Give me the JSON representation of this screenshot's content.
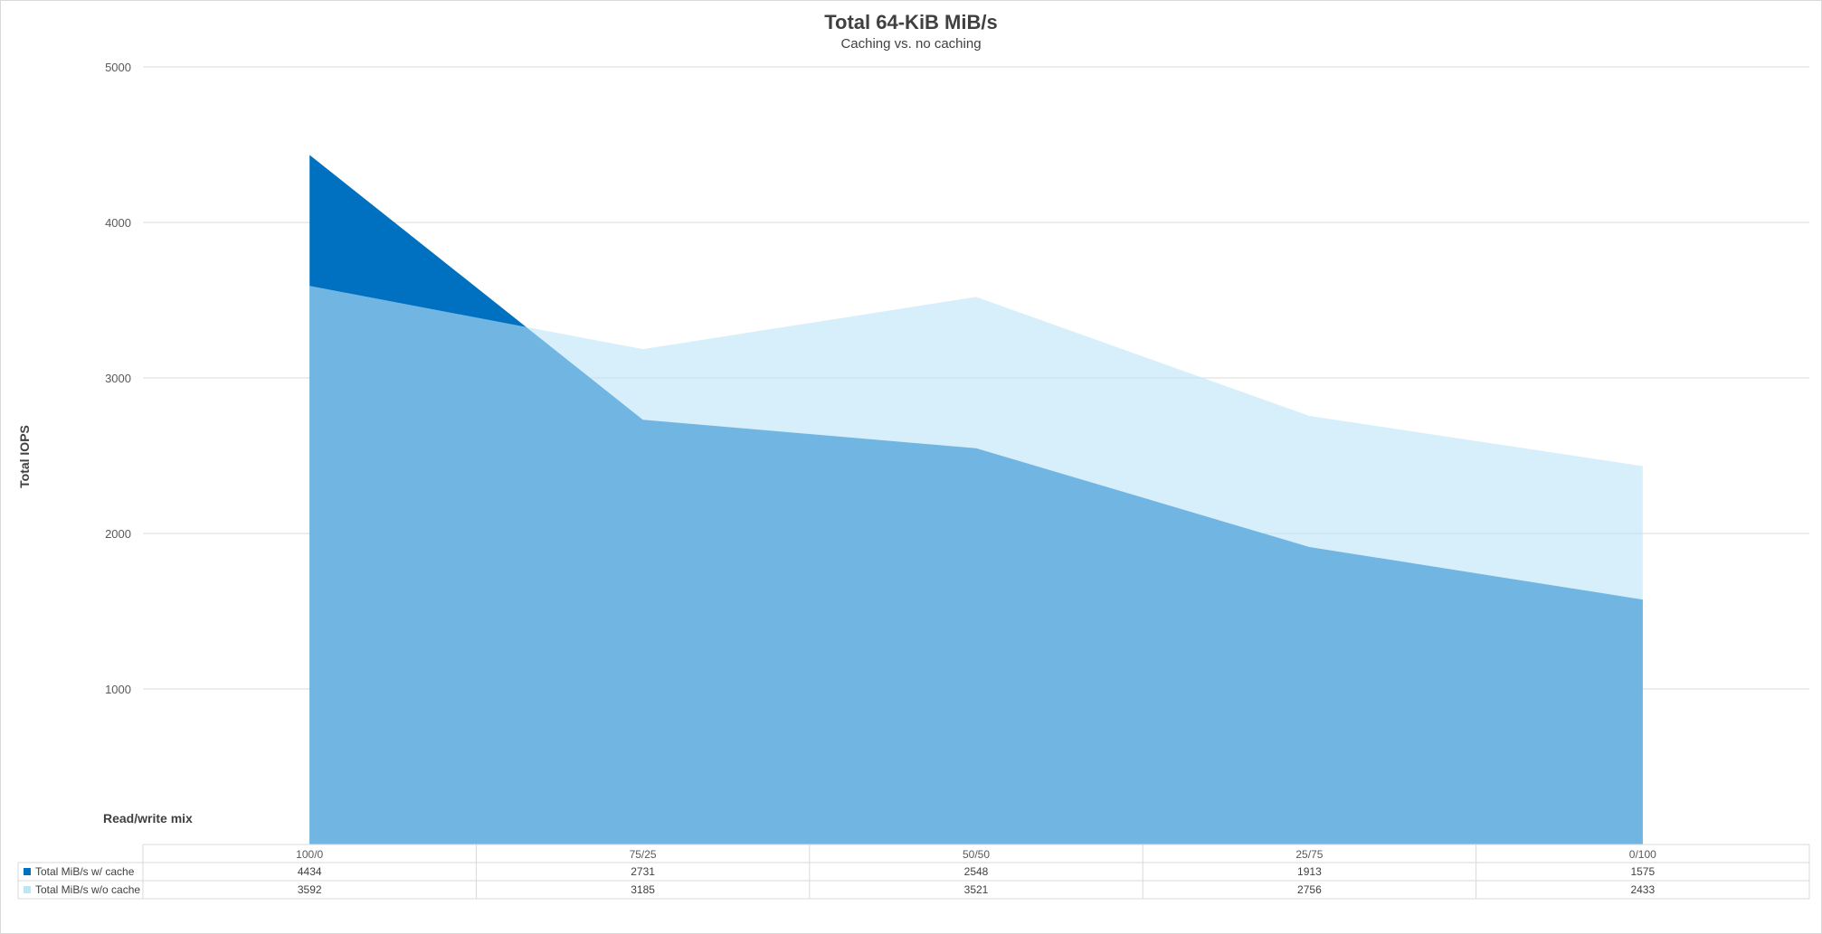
{
  "chart_data": {
    "type": "area",
    "title": "Total 64-KiB MiB/s",
    "subtitle": "Caching vs. no caching",
    "ylabel": "Total IOPS",
    "xlabel": "Read/write mix",
    "categories": [
      "100/0",
      "75/25",
      "50/50",
      "25/75",
      "0/100"
    ],
    "yticks": [
      1000,
      2000,
      3000,
      4000,
      5000
    ],
    "ylim": [
      0,
      5000
    ],
    "grid": true,
    "legend": "data-table",
    "series": [
      {
        "name": "Total MiB/s w/ cache",
        "values": [
          4434,
          2731,
          2548,
          1913,
          1575
        ],
        "color": "#0070C0"
      },
      {
        "name": "Total MiB/s w/o cache",
        "values": [
          3592,
          3185,
          3521,
          2756,
          2433
        ],
        "color": "#BDE5F8"
      }
    ]
  }
}
